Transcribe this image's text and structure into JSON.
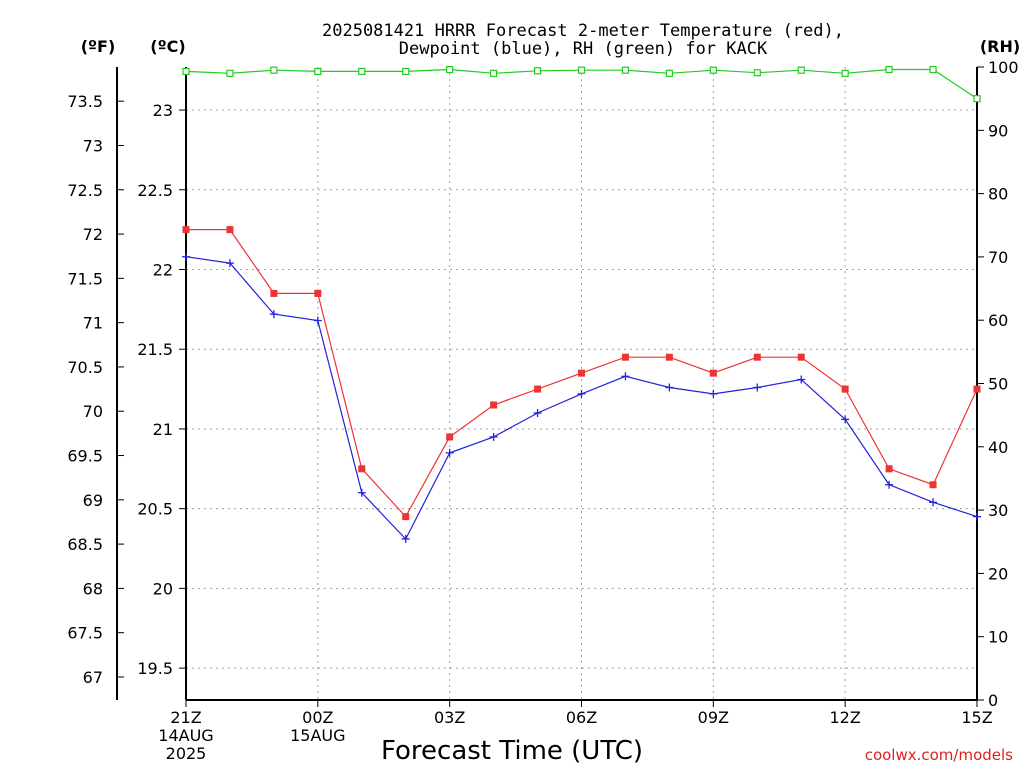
{
  "chart_data": {
    "type": "line",
    "title_line1": "2025081421 HRRR Forecast 2-meter Temperature (red),",
    "title_line2": "Dewpoint (blue), RH (green) for KACK",
    "xlabel": "Forecast Time (UTC)",
    "credit": "coolwx.com/models",
    "units": {
      "fahrenheit": "(ºF)",
      "celsius": "(ºC)",
      "rh": "(RH)"
    },
    "x_hours": [
      0,
      1,
      2,
      3,
      4,
      5,
      6,
      7,
      8,
      9,
      10,
      11,
      12,
      13,
      14,
      15,
      16,
      17,
      18
    ],
    "x_ticks": [
      {
        "hour": 0,
        "label": "21Z",
        "date": "14AUG",
        "year": "2025"
      },
      {
        "hour": 3,
        "label": "00Z",
        "date": "15AUG",
        "year": ""
      },
      {
        "hour": 6,
        "label": "03Z",
        "date": "",
        "year": ""
      },
      {
        "hour": 9,
        "label": "06Z",
        "date": "",
        "year": ""
      },
      {
        "hour": 12,
        "label": "09Z",
        "date": "",
        "year": ""
      },
      {
        "hour": 15,
        "label": "12Z",
        "date": "",
        "year": ""
      },
      {
        "hour": 18,
        "label": "15Z",
        "date": "",
        "year": ""
      }
    ],
    "xlim": [
      0,
      18
    ],
    "ylim_celsius": [
      19.3,
      23.27
    ],
    "ylim_rh": [
      0,
      100
    ],
    "celsius_ticks": [
      19.5,
      20,
      20.5,
      21,
      21.5,
      22,
      22.5,
      23
    ],
    "fahrenheit_ticks": [
      67,
      67.5,
      68,
      68.5,
      69,
      69.5,
      70,
      70.5,
      71,
      71.5,
      72,
      72.5,
      73,
      73.5
    ],
    "rh_ticks": [
      0,
      10,
      20,
      30,
      40,
      50,
      60,
      70,
      80,
      90,
      100
    ],
    "grid": true,
    "series": [
      {
        "key": "temperature",
        "color": "#ee3333",
        "marker": "square",
        "values": [
          22.25,
          22.25,
          21.85,
          21.85,
          20.75,
          20.45,
          20.95,
          21.15,
          21.25,
          21.35,
          21.45,
          21.45,
          21.35,
          21.45,
          21.45,
          21.25,
          20.75,
          20.65,
          21.25
        ]
      },
      {
        "key": "dewpoint",
        "color": "#2222dd",
        "marker": "plus",
        "values": [
          22.08,
          22.04,
          21.72,
          21.68,
          20.6,
          20.31,
          20.85,
          20.95,
          21.1,
          21.22,
          21.33,
          21.26,
          21.22,
          21.26,
          21.31,
          21.06,
          20.65,
          20.54,
          20.45
        ]
      },
      {
        "key": "rh",
        "color": "#22cc22",
        "marker": "open-square",
        "values": [
          99.3,
          99.0,
          99.5,
          99.3,
          99.3,
          99.3,
          99.6,
          99.0,
          99.4,
          99.5,
          99.5,
          99.0,
          99.5,
          99.1,
          99.5,
          99.0,
          99.6,
          99.6,
          95.0
        ]
      }
    ]
  }
}
